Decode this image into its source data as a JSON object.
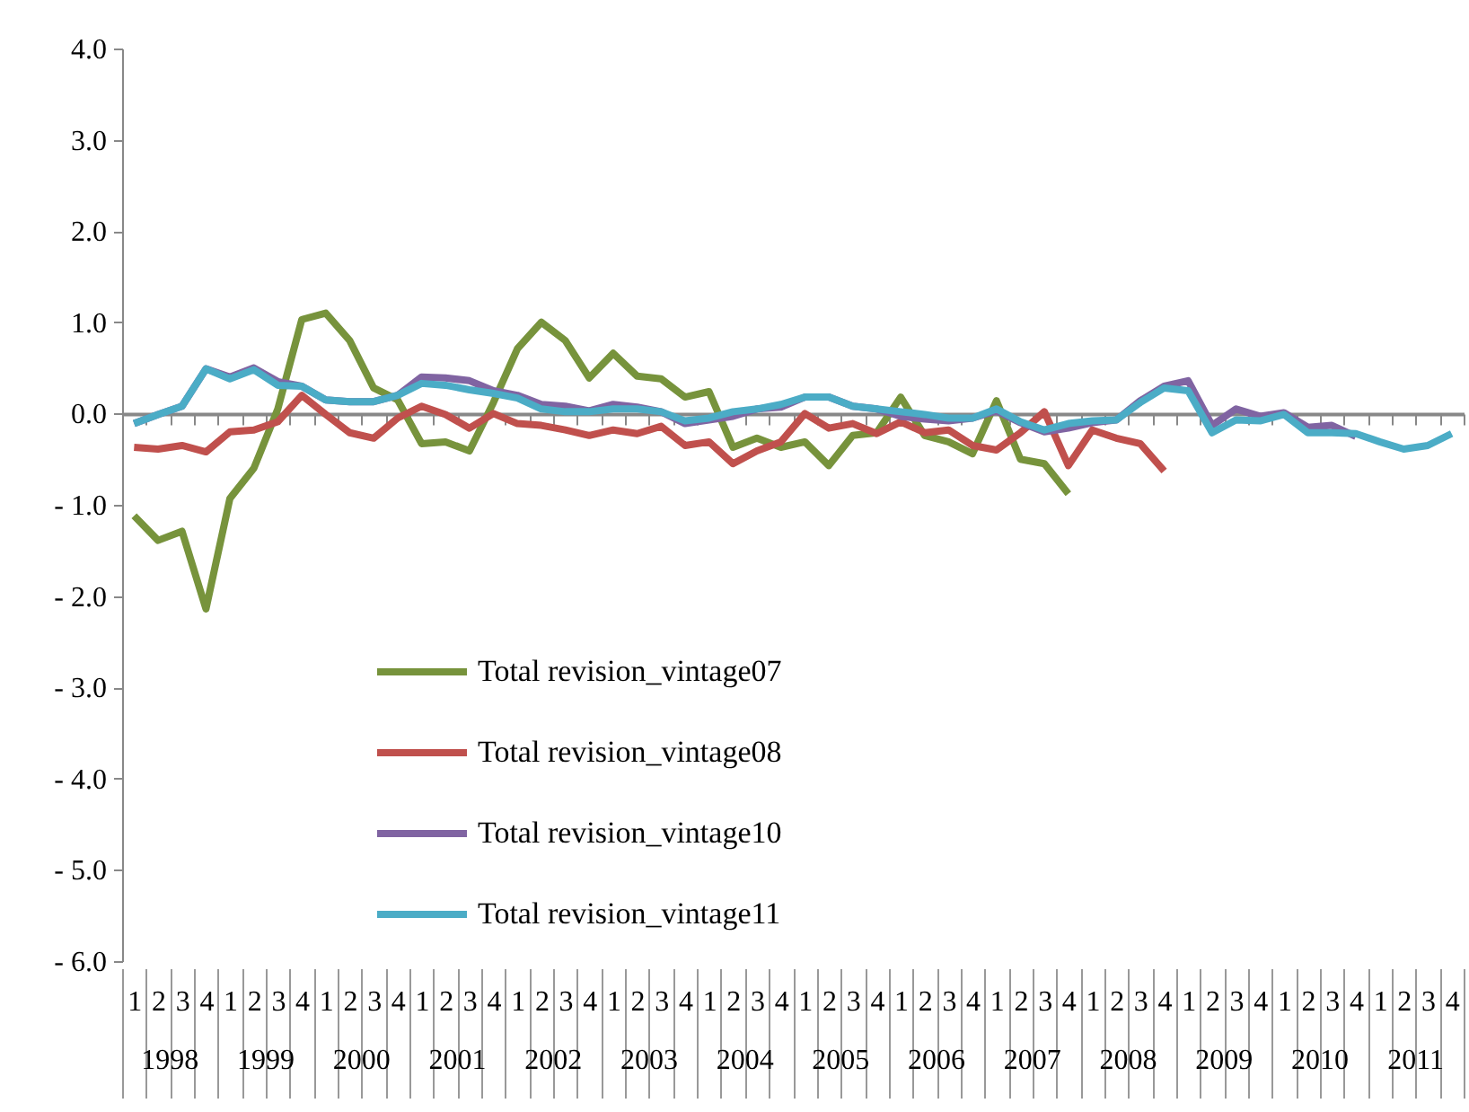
{
  "chart_data": {
    "type": "line",
    "categories": [
      "1",
      "2",
      "3",
      "4",
      "1",
      "2",
      "3",
      "4",
      "1",
      "2",
      "3",
      "4",
      "1",
      "2",
      "3",
      "4",
      "1",
      "2",
      "3",
      "4",
      "1",
      "2",
      "3",
      "4",
      "1",
      "2",
      "3",
      "4",
      "1",
      "2",
      "3",
      "4",
      "1",
      "2",
      "3",
      "4",
      "1",
      "2",
      "3",
      "4",
      "1",
      "2",
      "3",
      "4",
      "1",
      "2",
      "3",
      "4",
      "1",
      "2",
      "3",
      "4",
      "1",
      "2",
      "3",
      "4"
    ],
    "annotations": [
      "1998",
      "1999",
      "2000",
      "2001",
      "2002",
      "2003",
      "2004",
      "2005",
      "2006",
      "2007",
      "2008",
      "2009",
      "2010",
      "2011"
    ],
    "ylim": [
      -6,
      4
    ],
    "yticks": [
      {
        "value": 4,
        "label": "4.0"
      },
      {
        "value": 3,
        "label": "3.0"
      },
      {
        "value": 2,
        "label": "2.0"
      },
      {
        "value": 1,
        "label": "1.0"
      },
      {
        "value": 0,
        "label": "0.0"
      },
      {
        "value": -1,
        "label": "- 1.0"
      },
      {
        "value": -2,
        "label": "- 2.0"
      },
      {
        "value": -3,
        "label": "- 3.0"
      },
      {
        "value": -4,
        "label": "- 4.0"
      },
      {
        "value": -5,
        "label": "- 5.0"
      },
      {
        "value": -6,
        "label": "- 6.0"
      }
    ],
    "legend": "bottom left",
    "marker": "none",
    "line_style": "solid",
    "series": [
      {
        "name": "Total revision_vintage07",
        "color": "#77933c",
        "values": [
          -1.12,
          -1.39,
          -1.29,
          -2.14,
          -0.93,
          -0.6,
          0.05,
          1.03,
          1.1,
          0.8,
          0.28,
          0.15,
          -0.33,
          -0.31,
          -0.41,
          0.12,
          0.71,
          1.0,
          0.8,
          0.39,
          0.66,
          0.41,
          0.38,
          0.18,
          0.24,
          -0.37,
          -0.27,
          -0.37,
          -0.31,
          -0.57,
          -0.24,
          -0.21,
          0.18,
          -0.24,
          -0.31,
          -0.44,
          0.14,
          -0.5,
          -0.55,
          -0.88,
          null,
          null,
          null,
          null,
          null,
          null,
          null,
          null,
          null,
          null,
          null,
          null,
          null,
          null,
          null,
          null
        ]
      },
      {
        "name": "Total revision_vintage08",
        "color": "#c0504d",
        "values": [
          -0.37,
          -0.39,
          -0.35,
          -0.42,
          -0.2,
          -0.18,
          -0.09,
          0.2,
          -0.01,
          -0.21,
          -0.27,
          -0.05,
          0.08,
          -0.01,
          -0.16,
          0.0,
          -0.11,
          -0.13,
          -0.18,
          -0.24,
          -0.18,
          -0.22,
          -0.14,
          -0.35,
          -0.31,
          -0.55,
          -0.41,
          -0.31,
          0.0,
          -0.16,
          -0.11,
          -0.22,
          -0.09,
          -0.21,
          -0.18,
          -0.35,
          -0.4,
          -0.21,
          0.02,
          -0.57,
          -0.18,
          -0.27,
          -0.33,
          -0.63,
          null,
          null,
          null,
          null,
          null,
          null,
          null,
          null,
          null,
          null,
          null,
          null
        ]
      },
      {
        "name": "Total revision_vintage10",
        "color": "#8064a2",
        "values": [
          -0.11,
          -0.01,
          0.08,
          0.49,
          0.4,
          0.5,
          0.35,
          0.3,
          0.15,
          0.13,
          0.13,
          0.2,
          0.4,
          0.39,
          0.36,
          0.25,
          0.2,
          0.1,
          0.08,
          0.03,
          0.1,
          0.07,
          0.02,
          -0.11,
          -0.07,
          -0.03,
          0.05,
          0.07,
          0.18,
          0.18,
          0.08,
          0.05,
          -0.03,
          -0.06,
          -0.08,
          -0.05,
          0.03,
          -0.1,
          -0.2,
          -0.16,
          -0.1,
          -0.07,
          0.14,
          0.3,
          0.36,
          -0.13,
          0.05,
          -0.03,
          0.01,
          -0.15,
          -0.13,
          -0.25,
          null,
          null,
          null,
          null
        ]
      },
      {
        "name": "Total revision_vintage11",
        "color": "#4bacc6",
        "values": [
          -0.11,
          -0.01,
          0.08,
          0.49,
          0.38,
          0.48,
          0.31,
          0.3,
          0.15,
          0.13,
          0.13,
          0.2,
          0.33,
          0.31,
          0.26,
          0.22,
          0.17,
          0.05,
          0.02,
          0.02,
          0.05,
          0.05,
          0.02,
          -0.08,
          -0.05,
          0.02,
          0.05,
          0.1,
          0.18,
          0.18,
          0.08,
          0.05,
          0.02,
          -0.01,
          -0.05,
          -0.05,
          0.05,
          -0.09,
          -0.18,
          -0.11,
          -0.08,
          -0.07,
          0.12,
          0.28,
          0.25,
          -0.21,
          -0.07,
          -0.08,
          -0.01,
          -0.21,
          -0.21,
          -0.22,
          -0.31,
          -0.39,
          -0.35,
          -0.22
        ]
      }
    ]
  }
}
